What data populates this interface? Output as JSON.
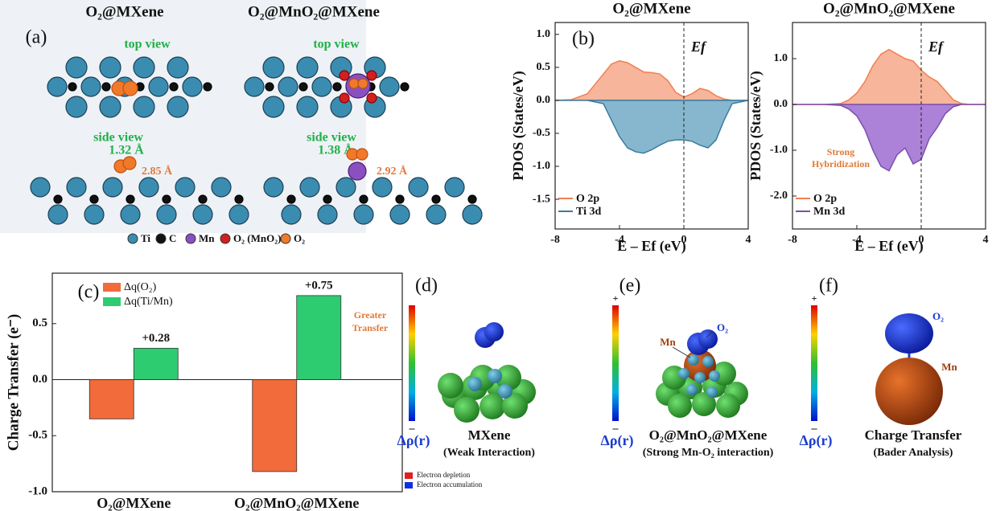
{
  "panel_a": {
    "label": "(a)",
    "titles": [
      "O₂@MXene",
      "O₂@MnO₂@MXene"
    ],
    "top_view": [
      "top view",
      "top view"
    ],
    "side_view": [
      "side view",
      "side view"
    ],
    "bond_lengths": [
      "1.32 Å",
      "1.38 Å"
    ],
    "heights": [
      "2.85 Å",
      "2.92 Å"
    ],
    "legend": [
      "Ti",
      "C",
      "Mn",
      "O₂ (MnO₂)",
      "O₂"
    ]
  },
  "chart_data": [
    {
      "type": "area",
      "panel_label": "(b)",
      "title": "O₂@MXene",
      "xlabel": "E – Ef (eV)",
      "ylabel": "PDOS (States/eV)",
      "fermi_label": "Ef",
      "fermi_level": 0,
      "xlim": [
        -8,
        4
      ],
      "xticks": [
        -8,
        -4,
        0,
        4
      ],
      "ylim": [
        -1.95,
        1.18
      ],
      "yticks": [
        {
          "value": 1,
          "label": "1.0"
        },
        0.5,
        {
          "value": 0,
          "label": "0.0"
        },
        -0.5,
        {
          "value": -1,
          "label": "-1.0"
        },
        -1.5
      ],
      "x": [
        -8,
        -7,
        -6,
        -5,
        -4.5,
        -4,
        -3.5,
        -3,
        -2.5,
        -2,
        -1.5,
        -1,
        -0.5,
        0,
        0.5,
        1,
        1.5,
        2,
        2.5,
        3,
        4
      ],
      "series": [
        {
          "name": "O 2p",
          "color": "#f08050",
          "fill": "#f7b59b",
          "values": [
            0,
            0.01,
            0.1,
            0.4,
            0.55,
            0.6,
            0.57,
            0.5,
            0.43,
            0.42,
            0.4,
            0.3,
            0.12,
            0.05,
            0.1,
            0.18,
            0.15,
            0.07,
            0.02,
            0,
            0
          ]
        },
        {
          "name": "Ti 3d",
          "color": "#3a7ca0",
          "fill": "#86b7cf",
          "values": [
            0,
            0,
            0,
            -0.05,
            -0.3,
            -0.55,
            -0.72,
            -0.78,
            -0.8,
            -0.75,
            -0.68,
            -0.62,
            -0.6,
            -0.6,
            -0.62,
            -0.68,
            -0.72,
            -0.6,
            -0.3,
            -0.05,
            0
          ]
        }
      ]
    },
    {
      "type": "area",
      "title": "O₂@MnO₂@MXene",
      "xlabel": "E – Ef (eV)",
      "ylabel": "PDOS (States/eV)",
      "fermi_label": "Ef",
      "fermi_level": 0,
      "annotation": "Strong Hybridization",
      "xlim": [
        -8,
        4
      ],
      "xticks": [
        -8,
        -4,
        0,
        4
      ],
      "ylim": [
        -2.72,
        1.79
      ],
      "yticks": [
        {
          "value": 1,
          "label": "1.0"
        },
        {
          "value": 0,
          "label": "0.0"
        },
        {
          "value": -1,
          "label": "-1.0"
        },
        {
          "value": -2,
          "label": "-2.0"
        }
      ],
      "x": [
        -8,
        -7,
        -6,
        -5,
        -4.5,
        -4,
        -3.5,
        -3,
        -2.5,
        -2,
        -1.5,
        -1,
        -0.5,
        0,
        0.5,
        1,
        1.5,
        2,
        2.5,
        3,
        4
      ],
      "series": [
        {
          "name": "O 2p",
          "color": "#f08050",
          "fill": "#f7b59b",
          "values": [
            0,
            0,
            0,
            0.02,
            0.1,
            0.25,
            0.5,
            0.85,
            1.1,
            1.2,
            1.1,
            1.0,
            0.95,
            0.75,
            0.6,
            0.5,
            0.3,
            0.1,
            0.02,
            0,
            0
          ]
        },
        {
          "name": "Mn 3d",
          "color": "#7a4fb0",
          "fill": "#ab82d8",
          "values": [
            0,
            0,
            0,
            -0.02,
            -0.1,
            -0.25,
            -0.55,
            -1.0,
            -1.35,
            -1.45,
            -1.1,
            -0.95,
            -1.3,
            -1.2,
            -0.75,
            -0.5,
            -0.2,
            -0.05,
            0,
            0,
            0
          ]
        }
      ]
    },
    {
      "type": "bar",
      "panel_label": "(c)",
      "ylabel": "Charge Transfer (e⁻)",
      "annotation": "Greater Transfer",
      "categories": [
        "O₂@MXene",
        "O₂@MnO₂@MXene"
      ],
      "ylim": [
        -1.0,
        0.95
      ],
      "yticks": [
        0.5,
        {
          "value": 0,
          "label": "0.0"
        },
        -0.5,
        {
          "value": -1,
          "label": "-1.0"
        }
      ],
      "series": [
        {
          "name": "Δq(O₂)",
          "color": "#f26b3a",
          "values": [
            -0.35,
            -0.82
          ]
        },
        {
          "name": "Δq(Ti/Mn)",
          "color": "#2ecc71",
          "values": [
            0.28,
            0.75
          ],
          "value_labels": [
            "+0.28",
            "+0.75"
          ]
        }
      ]
    }
  ],
  "panel_d": {
    "label": "(d)",
    "minus": "–",
    "colorbar_label": "Δρ(r)",
    "caption": "MXene",
    "subcaption": "(Weak Interaction)",
    "legend": [
      "Electron depletion",
      "Electron accumulation"
    ]
  },
  "panel_e": {
    "label": "(e)",
    "plus": "+",
    "minus": "–",
    "colorbar_label": "Δρ(r)",
    "caption": "O₂@MnO₂@MXene",
    "subcaption": "(Strong Mn-O₂ interaction)",
    "atoms": [
      "Mn",
      "O₂"
    ]
  },
  "panel_f": {
    "label": "(f)",
    "plus": "+",
    "minus": "–",
    "colorbar_label": "Δρ(r)",
    "caption": "Charge Transfer",
    "subcaption": "(Bader Analysis)",
    "atoms": [
      "O₂",
      "Mn"
    ]
  }
}
